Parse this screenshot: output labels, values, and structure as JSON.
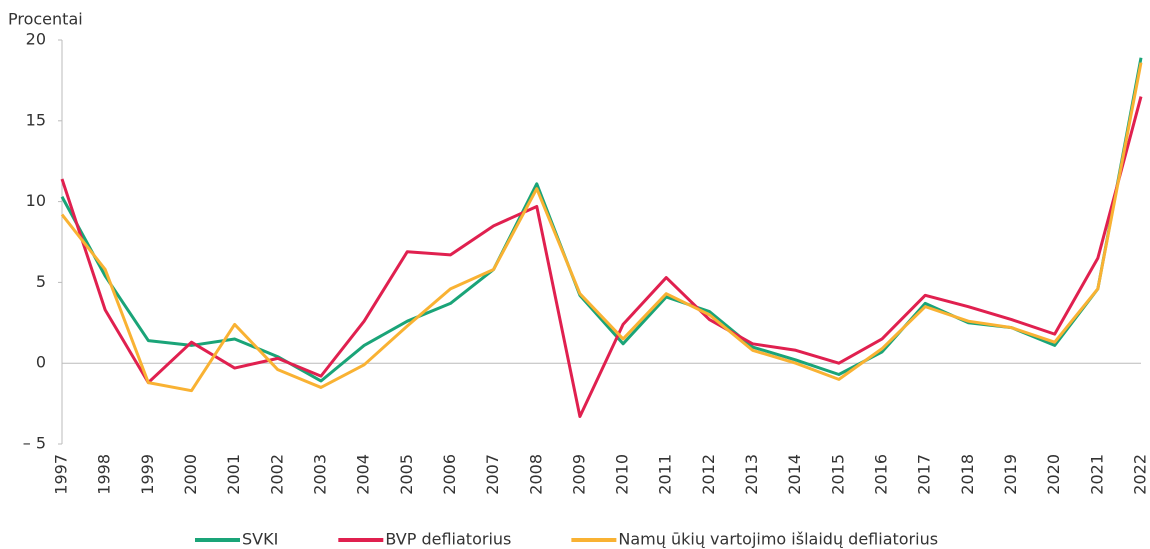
{
  "chart_data": {
    "type": "line",
    "y_axis_label": "Procentai",
    "categories": [
      "1997",
      "1998",
      "1999",
      "2000",
      "2001",
      "2002",
      "2003",
      "2004",
      "2005",
      "2006",
      "2007",
      "2008",
      "2009",
      "2010",
      "2011",
      "2012",
      "2013",
      "2014",
      "2015",
      "2016",
      "2017",
      "2018",
      "2019",
      "2020",
      "2021",
      "2022"
    ],
    "series": [
      {
        "name": "SVKI",
        "color": "#1aa478",
        "values": [
          10.3,
          5.4,
          1.4,
          1.1,
          1.5,
          0.4,
          -1.1,
          1.1,
          2.6,
          3.7,
          5.8,
          11.1,
          4.2,
          1.2,
          4.1,
          3.2,
          1.0,
          0.2,
          -0.7,
          0.7,
          3.7,
          2.5,
          2.2,
          1.1,
          4.6,
          18.9
        ]
      },
      {
        "name": "BVP defliatorius",
        "color": "#e0204f",
        "values": [
          11.4,
          3.3,
          -1.2,
          1.3,
          -0.3,
          0.3,
          -0.8,
          2.6,
          6.9,
          6.7,
          8.5,
          9.7,
          -3.3,
          2.4,
          5.3,
          2.7,
          1.2,
          0.8,
          0.0,
          1.5,
          4.2,
          3.5,
          2.7,
          1.8,
          6.5,
          16.5
        ]
      },
      {
        "name": "Namų ūkių vartojimo išlaidų defliatorius",
        "color": "#f9b233",
        "values": [
          9.2,
          5.8,
          -1.2,
          -1.7,
          2.4,
          -0.4,
          -1.5,
          -0.1,
          2.3,
          4.6,
          5.8,
          10.8,
          4.3,
          1.5,
          4.3,
          3.0,
          0.8,
          0.0,
          -1.0,
          0.9,
          3.5,
          2.6,
          2.2,
          1.3,
          4.6,
          18.6
        ]
      }
    ],
    "ylim": [
      -5,
      20
    ],
    "yticks": [
      {
        "value": -5,
        "label": "– 5"
      },
      0,
      5,
      10,
      15,
      20
    ],
    "legend": "bottom"
  }
}
